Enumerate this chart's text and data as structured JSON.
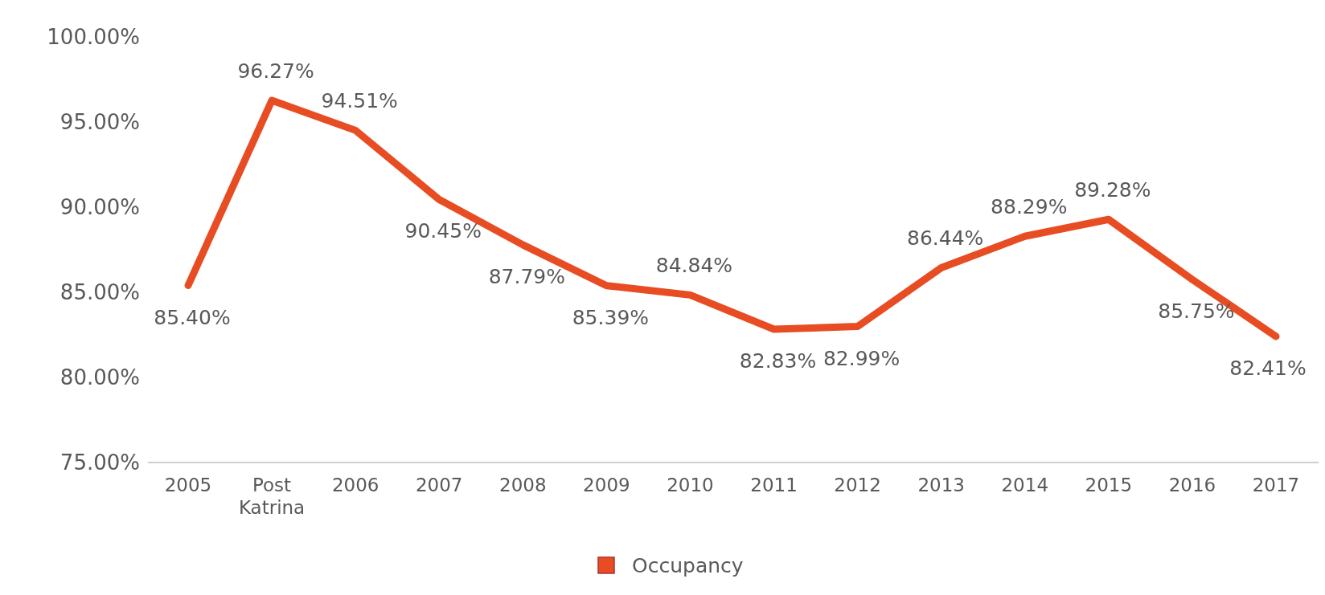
{
  "chart_data": {
    "type": "line",
    "categories": [
      "2005",
      "Post\nKatrina",
      "2006",
      "2007",
      "2008",
      "2009",
      "2010",
      "2011",
      "2012",
      "2013",
      "2014",
      "2015",
      "2016",
      "2017"
    ],
    "series": [
      {
        "name": "Occupancy",
        "color": "#e84c22",
        "values": [
          85.4,
          96.27,
          94.51,
          90.45,
          87.79,
          85.39,
          84.84,
          82.83,
          82.99,
          86.44,
          88.29,
          89.28,
          85.75,
          82.41
        ]
      }
    ],
    "ylim": [
      75,
      100
    ],
    "yticks": [
      {
        "value": 75,
        "label": "75.00%"
      },
      {
        "value": 80,
        "label": "80.00%"
      },
      {
        "value": 85,
        "label": "85.00%"
      },
      {
        "value": 90,
        "label": "90.00%"
      },
      {
        "value": 95,
        "label": "95.00%"
      },
      {
        "value": 100,
        "label": "100.00%"
      }
    ],
    "value_labels": [
      "85.40%",
      "96.27%",
      "94.51%",
      "90.45%",
      "87.79%",
      "85.39%",
      "84.84%",
      "82.83%",
      "82.99%",
      "86.44%",
      "88.29%",
      "89.28%",
      "85.75%",
      "82.41%"
    ],
    "legend": "bottom",
    "grid": false,
    "marker": "none",
    "line_style": "solid"
  }
}
